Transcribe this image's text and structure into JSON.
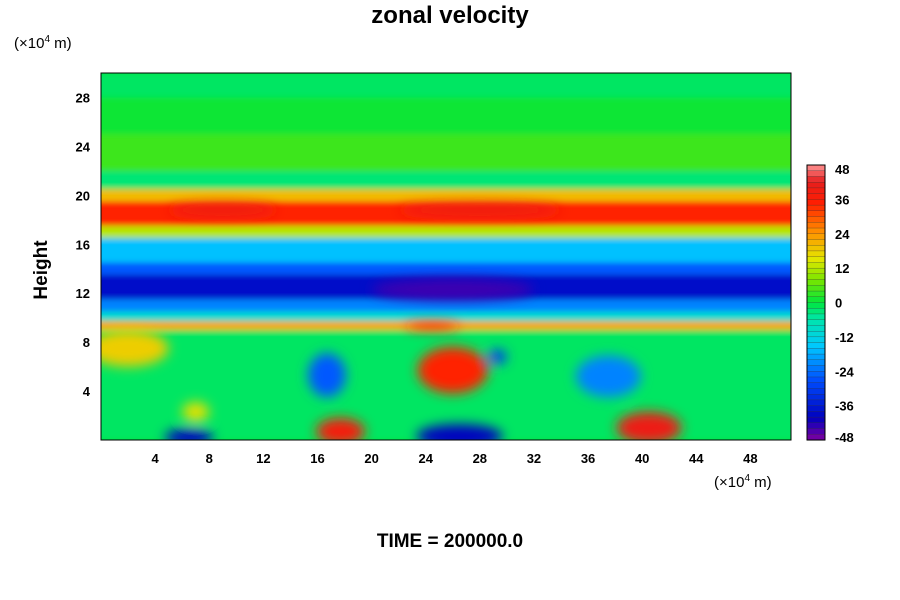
{
  "chart_data": {
    "type": "heatmap",
    "title": "zonal velocity",
    "ylabel": "Height",
    "y_unit_prefix": "(×10",
    "y_unit_exp": "4",
    "y_unit_suffix": " m)",
    "x_unit_prefix": "(×10",
    "x_unit_exp": "4",
    "x_unit_suffix": " m)",
    "x_ticks": [
      "4",
      "8",
      "12",
      "16",
      "20",
      "24",
      "28",
      "32",
      "36",
      "40",
      "44",
      "48"
    ],
    "y_ticks": [
      "4",
      "8",
      "12",
      "16",
      "20",
      "24",
      "28"
    ],
    "xlim": [
      0,
      51
    ],
    "ylim": [
      0,
      30
    ],
    "colorbar": {
      "min": -48,
      "max": 48,
      "labels": [
        "48",
        "36",
        "24",
        "12",
        "0",
        "-12",
        "-24",
        "-36",
        "-48"
      ]
    },
    "bands": [
      {
        "y0": 28,
        "y1": 30,
        "value": -2
      },
      {
        "y0": 25,
        "y1": 28,
        "value": 1
      },
      {
        "y0": 22,
        "y1": 25,
        "value": 4
      },
      {
        "y0": 20.5,
        "y1": 22,
        "value": -3
      },
      {
        "y0": 19.5,
        "y1": 20.5,
        "value": 20
      },
      {
        "y0": 17.5,
        "y1": 19.5,
        "value": 34
      },
      {
        "y0": 16.5,
        "y1": 17.5,
        "value": 12
      },
      {
        "y0": 14.5,
        "y1": 16.5,
        "value": -16
      },
      {
        "y0": 13.5,
        "y1": 14.5,
        "value": -26
      },
      {
        "y0": 11.5,
        "y1": 13.5,
        "value": -38
      },
      {
        "y0": 10.5,
        "y1": 11.5,
        "value": -22
      },
      {
        "y0": 9.7,
        "y1": 10.5,
        "value": -10
      },
      {
        "y0": 9,
        "y1": 9.7,
        "value": 22
      },
      {
        "y0": 0,
        "y1": 9,
        "value": -2
      }
    ],
    "blobs": [
      {
        "x": 2,
        "y": 7.5,
        "rx": 3,
        "ry": 1.5,
        "value": 18
      },
      {
        "x": 7,
        "y": 2.3,
        "rx": 1,
        "ry": 0.8,
        "value": 16
      },
      {
        "x": 6.5,
        "y": 0.2,
        "rx": 1.8,
        "ry": 0.7,
        "value": -40
      },
      {
        "x": 16.7,
        "y": 5.3,
        "rx": 1.4,
        "ry": 1.8,
        "value": -26
      },
      {
        "x": 17.7,
        "y": 0.7,
        "rx": 1.8,
        "ry": 1.1,
        "value": 38
      },
      {
        "x": 26,
        "y": 5.7,
        "rx": 2.6,
        "ry": 1.9,
        "value": 34
      },
      {
        "x": 29.3,
        "y": 6.8,
        "rx": 0.7,
        "ry": 0.6,
        "value": -30
      },
      {
        "x": 26.5,
        "y": 0.3,
        "rx": 3.2,
        "ry": 1.0,
        "value": -40
      },
      {
        "x": 37.5,
        "y": 5.2,
        "rx": 2.4,
        "ry": 1.7,
        "value": -22
      },
      {
        "x": 40.5,
        "y": 1.0,
        "rx": 2.4,
        "ry": 1.3,
        "value": 40
      },
      {
        "x": 26,
        "y": 12.3,
        "rx": 6,
        "ry": 0.9,
        "value": -44
      },
      {
        "x": 24.5,
        "y": 9.3,
        "rx": 2,
        "ry": 0.3,
        "value": 38
      },
      {
        "x": 9,
        "y": 18.8,
        "rx": 4,
        "ry": 0.5,
        "value": 40
      },
      {
        "x": 28,
        "y": 18.8,
        "rx": 6,
        "ry": 0.5,
        "value": 40
      }
    ]
  },
  "time_label": "TIME = 200000.0"
}
